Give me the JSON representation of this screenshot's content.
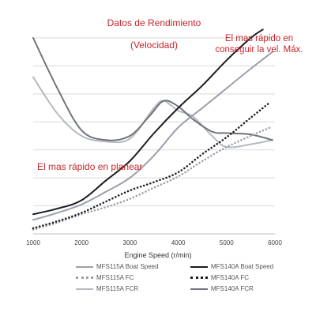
{
  "chart_data": {
    "type": "line",
    "title": "Datos de Rendimiento",
    "subtitle": "(Velocidad)",
    "xlabel": "Engine Speed (r/min)",
    "ylabel": "",
    "xlim": [
      1000,
      6000
    ],
    "x_ticks": [
      "1000",
      "2000",
      "3000",
      "4000",
      "5000",
      "6000"
    ],
    "ylim": [
      0,
      7
    ],
    "grid": true,
    "legend_position": "bottom",
    "annotations": [
      {
        "text": "El mas rápido en conseguir la vel. Máx."
      },
      {
        "text": "El mas rápido en planear"
      }
    ],
    "series": [
      {
        "name": "MFS115A Boat Speed",
        "color": "#9aa0ab",
        "style": "solid",
        "width": 2,
        "x": [
          1000,
          1500,
          2000,
          2500,
          3000,
          3500,
          4000,
          4500,
          5000,
          5500,
          5950
        ],
        "y": [
          0.5,
          0.75,
          1.05,
          1.5,
          2.0,
          2.8,
          3.8,
          4.5,
          5.2,
          5.9,
          6.5
        ]
      },
      {
        "name": "MFS140A Boat Speed",
        "color": "#1b1b23",
        "style": "solid",
        "width": 2,
        "x": [
          1000,
          1500,
          2000,
          2500,
          3000,
          3500,
          4000,
          4500,
          5000,
          5500,
          5750
        ],
        "y": [
          0.7,
          0.9,
          1.2,
          1.9,
          2.6,
          3.6,
          4.5,
          5.3,
          6.2,
          7.0,
          7.3
        ]
      },
      {
        "name": "MFS115A FC",
        "color": "#9aa0ab",
        "style": "dotted",
        "width": 2.5,
        "x": [
          1000,
          1500,
          2000,
          2500,
          3000,
          3500,
          4000,
          4500,
          5000,
          5500,
          5900
        ],
        "y": [
          0.15,
          0.4,
          0.7,
          0.95,
          1.25,
          1.65,
          2.05,
          2.6,
          3.1,
          3.5,
          3.8
        ]
      },
      {
        "name": "MFS140A FC",
        "color": "#1b1b23",
        "style": "dotted",
        "width": 2.5,
        "x": [
          1000,
          1500,
          2000,
          2500,
          3000,
          3500,
          4000,
          4500,
          5000,
          5500,
          5900
        ],
        "y": [
          0.2,
          0.45,
          0.75,
          1.15,
          1.55,
          1.85,
          2.2,
          2.85,
          3.45,
          4.15,
          4.7
        ]
      },
      {
        "name": "MFS115A FCR",
        "color": "#b5b9c0",
        "style": "solid",
        "width": 2,
        "x": [
          1000,
          1500,
          2000,
          2500,
          3000,
          3500,
          3700,
          4000,
          4300,
          4700,
          5000,
          5500,
          5950
        ],
        "y": [
          5.6,
          4.3,
          3.5,
          3.3,
          3.4,
          4.5,
          4.75,
          4.4,
          4.2,
          3.5,
          3.1,
          3.2,
          3.35
        ]
      },
      {
        "name": "MFS140A FCR",
        "color": "#70737c",
        "style": "solid",
        "width": 2,
        "x": [
          1000,
          1500,
          2000,
          2500,
          3000,
          3400,
          3700,
          4000,
          4300,
          4700,
          5000,
          5500,
          5950
        ],
        "y": [
          7.0,
          5.2,
          3.7,
          3.35,
          3.5,
          4.2,
          4.75,
          4.55,
          4.1,
          3.65,
          3.6,
          3.55,
          3.35
        ]
      }
    ]
  }
}
